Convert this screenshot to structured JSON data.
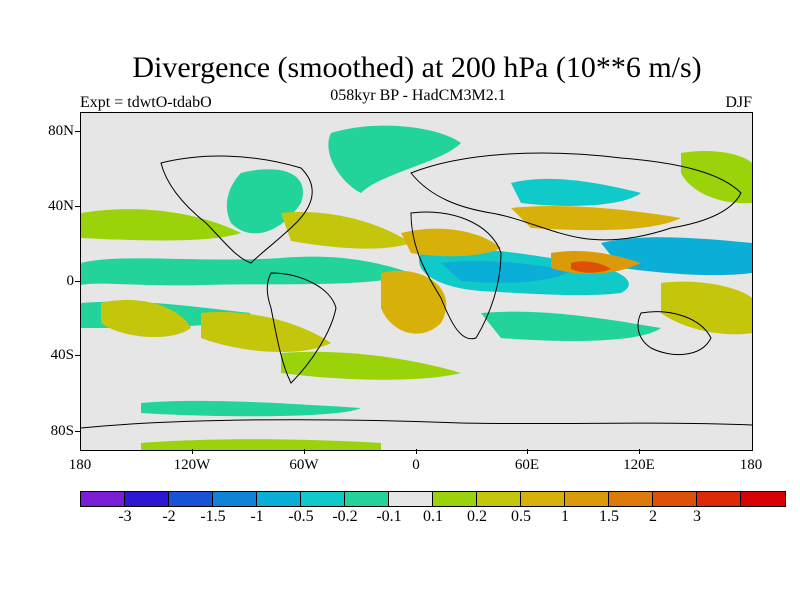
{
  "title": "Divergence (smoothed) at 200 hPa (10**6 m/s)",
  "subtitle": "058kyr BP - HadCM3M2.1",
  "experiment": "Expt = tdwtO-tdabO",
  "season": "DJF",
  "lat_labels": [
    "80N",
    "40N",
    "0",
    "40S",
    "80S"
  ],
  "lon_labels": [
    "180",
    "120W",
    "60W",
    "0",
    "60E",
    "120E",
    "180"
  ],
  "colorbar": {
    "colors": [
      "#7a1ed6",
      "#2c17d4",
      "#1a52d6",
      "#1183d6",
      "#0aaed6",
      "#10c9c9",
      "#22d39c",
      "#e6e6e6",
      "#9ad30a",
      "#c3c60a",
      "#d8b00a",
      "#db9a0a",
      "#dd7a0a",
      "#de5008",
      "#dd2a06",
      "#d80202"
    ],
    "labels": [
      "-3",
      "-2",
      "-1.5",
      "-1",
      "-0.5",
      "-0.2",
      "-0.1",
      "0.1",
      "0.2",
      "0.5",
      "1",
      "1.5",
      "2",
      "3"
    ]
  },
  "palette": {
    "neg_strong": "#1183d6",
    "neg_mid": "#0aaed6",
    "neg_light": "#10c9c9",
    "neg_weak": "#22d39c",
    "pos_weak": "#9ad30a",
    "pos_light": "#c3c60a",
    "pos_mid": "#d8b00a",
    "pos_strong": "#db9a0a",
    "pos_vstrong": "#dd7a0a",
    "pos_max": "#de5008",
    "background": "#e6e6e6"
  }
}
